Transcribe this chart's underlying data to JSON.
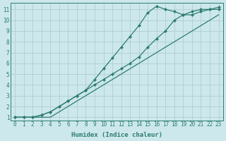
{
  "xlabel": "Humidex (Indice chaleur)",
  "bg_color": "#cce8ec",
  "grid_color": "#b0cdd2",
  "line_color": "#2e7d6e",
  "xlim": [
    -0.5,
    23.5
  ],
  "ylim": [
    0.7,
    11.6
  ],
  "xticks": [
    0,
    1,
    2,
    3,
    4,
    5,
    6,
    7,
    8,
    9,
    10,
    11,
    12,
    13,
    14,
    15,
    16,
    17,
    18,
    19,
    20,
    21,
    22,
    23
  ],
  "yticks": [
    1,
    2,
    3,
    4,
    5,
    6,
    7,
    8,
    9,
    10,
    11
  ],
  "line1_x": [
    0,
    1,
    2,
    3,
    4,
    5,
    6,
    7,
    8,
    9,
    10,
    11,
    12,
    13,
    14,
    15,
    16,
    17,
    18,
    19,
    20,
    21,
    22,
    23
  ],
  "line1_y": [
    1,
    1,
    1,
    1,
    1,
    1.5,
    2,
    2.5,
    3,
    3.5,
    4,
    4.5,
    5,
    5.5,
    6,
    6.5,
    7,
    7.5,
    8,
    8.5,
    9,
    9.5,
    10,
    10.5
  ],
  "line2_x": [
    0,
    1,
    2,
    3,
    4,
    5,
    6,
    7,
    8,
    9,
    10,
    11,
    12,
    13,
    14,
    15,
    16,
    17,
    18,
    19,
    20,
    21,
    22,
    23
  ],
  "line2_y": [
    1,
    1,
    1,
    1.2,
    1.5,
    2,
    2.5,
    3,
    3.5,
    4,
    4.5,
    5,
    5.5,
    6,
    6.6,
    7.5,
    8.3,
    9,
    10,
    10.5,
    10.8,
    11,
    11,
    11
  ],
  "line3_x": [
    0,
    1,
    2,
    3,
    4,
    5,
    6,
    7,
    8,
    9,
    10,
    11,
    12,
    13,
    14,
    15,
    16,
    17,
    18,
    19,
    20,
    21,
    22,
    23
  ],
  "line3_y": [
    1,
    1,
    1,
    1.2,
    1.5,
    2,
    2.5,
    3,
    3.5,
    4.5,
    5.5,
    6.5,
    7.5,
    8.5,
    9.5,
    10.7,
    11.3,
    11,
    10.8,
    10.5,
    10.5,
    10.8,
    11,
    11.2
  ]
}
